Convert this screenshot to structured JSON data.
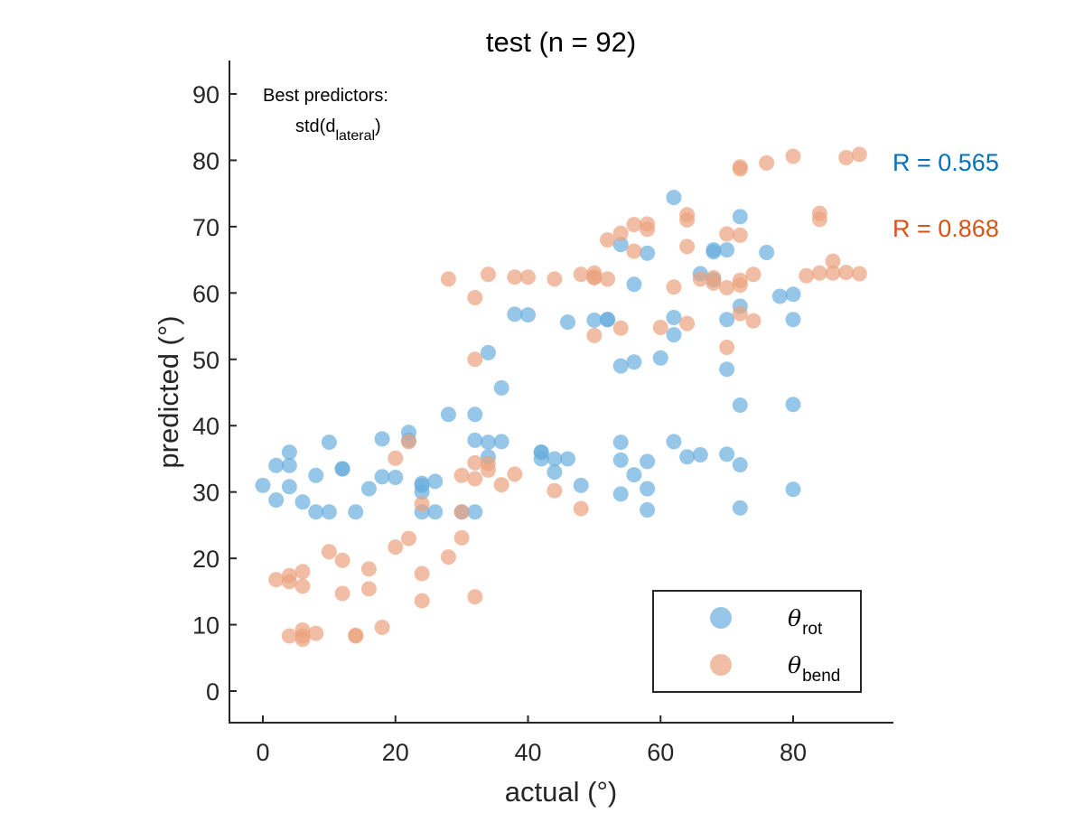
{
  "chart_data": {
    "type": "scatter",
    "title": "test (n = 92)",
    "xlabel": "actual (°)",
    "ylabel": "predicted (°)",
    "xlim": [
      -5,
      95
    ],
    "ylim": [
      -5,
      95
    ],
    "xticks": [
      "0",
      "20",
      "40",
      "60",
      "80"
    ],
    "xtick_values": [
      0,
      20,
      40,
      60,
      80
    ],
    "yticks": [
      "0",
      "10",
      "20",
      "30",
      "40",
      "50",
      "60",
      "70",
      "80",
      "90"
    ],
    "ytick_values": [
      0,
      10,
      20,
      30,
      40,
      50,
      60,
      70,
      80,
      90
    ],
    "grid": false,
    "annotation": {
      "line1": "Best predictors:",
      "line2_main": "std(d",
      "line2_sub": "lateral",
      "line2_close": ")"
    },
    "r_labels": [
      {
        "text": "R = 0.565",
        "color": "#0072BD"
      },
      {
        "text": "R = 0.868",
        "color": "#D95319"
      }
    ],
    "legend": {
      "position": "bottom-right",
      "entries": [
        {
          "symbol": "θ",
          "sub": "rot"
        },
        {
          "symbol": "θ",
          "sub": "bend"
        }
      ]
    },
    "series": [
      {
        "color": "#0072BD",
        "point_color": "#6AAEDE",
        "x": [
          0,
          2,
          2,
          4,
          4,
          4,
          6,
          8,
          8,
          10,
          10,
          12,
          12,
          14,
          16,
          18,
          18,
          20,
          22,
          22,
          24,
          24,
          24,
          24,
          26,
          26,
          28,
          30,
          32,
          32,
          32,
          34,
          34,
          34,
          36,
          36,
          38,
          40,
          42,
          42,
          42,
          44,
          44,
          46,
          46,
          48,
          50,
          52,
          52,
          54,
          54,
          54,
          54,
          54,
          56,
          56,
          56,
          58,
          58,
          58,
          58,
          60,
          62,
          62,
          62,
          62,
          64,
          66,
          66,
          68,
          68,
          68,
          70,
          70,
          70,
          70,
          72,
          72,
          72,
          72,
          72,
          76,
          78,
          80,
          80,
          80,
          80
        ],
        "y": [
          31,
          28.8,
          34,
          30.8,
          34,
          36,
          28.5,
          27,
          32.5,
          27,
          37.5,
          33.5,
          33.5,
          27,
          30.5,
          32.3,
          38,
          32.2,
          37.8,
          39,
          27,
          30,
          31,
          31.3,
          27,
          31.6,
          41.7,
          27,
          27,
          37.8,
          41.7,
          35.3,
          37.5,
          51,
          37.6,
          45.7,
          56.8,
          56.7,
          35,
          36,
          36,
          33,
          35,
          35,
          55.6,
          31,
          55.9,
          56,
          56,
          29.7,
          34.8,
          37.5,
          49,
          67.3,
          32.6,
          49.6,
          61.3,
          27.3,
          30.5,
          34.6,
          66,
          50.2,
          37.6,
          53.7,
          56.3,
          74.4,
          35.3,
          35.6,
          62.9,
          62,
          66.2,
          66.5,
          35.7,
          48.5,
          56,
          66.5,
          27.6,
          34.1,
          43.1,
          58,
          71.5,
          66.1,
          59.5,
          30.4,
          43.2,
          56,
          59.8
        ]
      },
      {
        "color": "#D95319",
        "point_color": "#EBA27F",
        "x": [
          2,
          4,
          4,
          4,
          6,
          6,
          6,
          6,
          6,
          8,
          10,
          12,
          12,
          14,
          14,
          16,
          16,
          18,
          20,
          20,
          22,
          22,
          24,
          24,
          24,
          28,
          28,
          30,
          30,
          30,
          32,
          32,
          32,
          32,
          32,
          34,
          34,
          34,
          36,
          38,
          38,
          40,
          44,
          44,
          48,
          48,
          50,
          50,
          50,
          50,
          52,
          52,
          54,
          54,
          56,
          56,
          58,
          58,
          60,
          62,
          64,
          64,
          64,
          64,
          66,
          68,
          68,
          70,
          70,
          70,
          72,
          72,
          72,
          72,
          72,
          72,
          74,
          74,
          76,
          80,
          82,
          84,
          84,
          84,
          86,
          86,
          88,
          88,
          90,
          90
        ],
        "y": [
          16.8,
          8.3,
          16.5,
          17.4,
          7.8,
          8.3,
          9.2,
          15.8,
          18,
          8.7,
          21,
          14.7,
          19.7,
          8.3,
          8.4,
          15.4,
          18.4,
          9.6,
          21.7,
          35.1,
          23,
          37.6,
          13.6,
          17.7,
          28.2,
          20.2,
          62.1,
          23.1,
          27,
          32.5,
          14.2,
          32,
          34.4,
          50,
          59.3,
          33.3,
          34.3,
          62.8,
          31.1,
          32.7,
          62.4,
          62.4,
          30.2,
          62.1,
          27.5,
          62.8,
          53.6,
          62.3,
          62.4,
          63,
          62.1,
          68,
          54.7,
          69,
          66.3,
          70.3,
          69.6,
          70.4,
          54.8,
          60.9,
          55.4,
          67,
          71,
          71.8,
          62.1,
          61.5,
          62.3,
          51.8,
          60.8,
          68.9,
          56.9,
          61.2,
          61.9,
          68.7,
          78.7,
          79,
          55.8,
          62.8,
          79.6,
          80.6,
          62.6,
          63,
          71.1,
          72,
          63,
          64.8,
          63.1,
          80.4,
          62.9,
          80.9
        ]
      }
    ]
  }
}
